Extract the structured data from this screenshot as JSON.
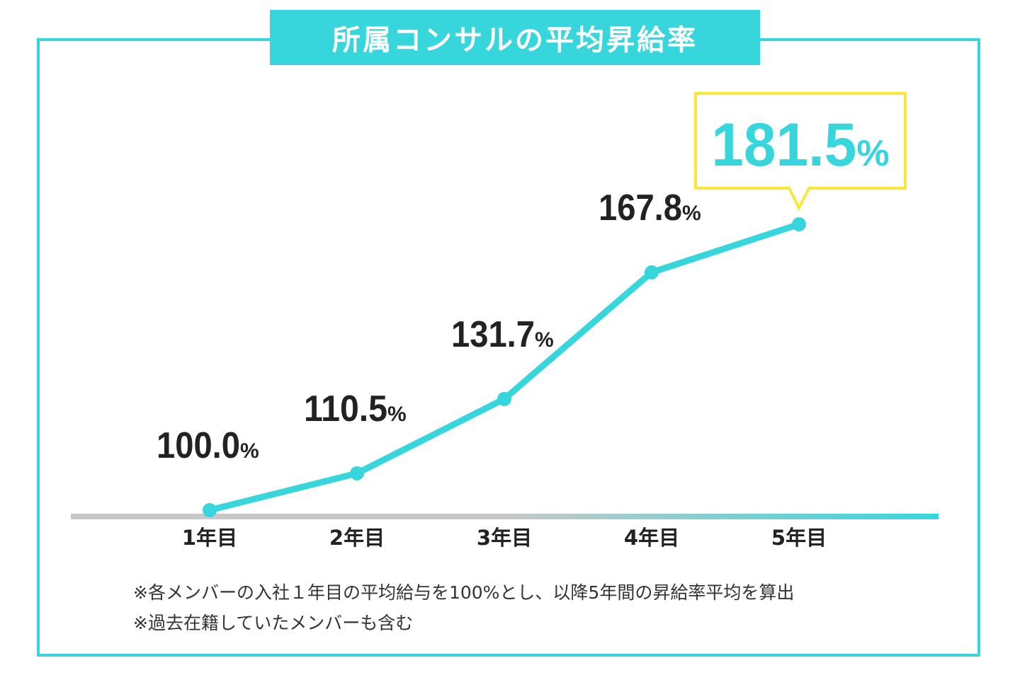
{
  "title": "所属コンサルの平均昇給率",
  "notes": [
    "※各メンバーの入社１年目の平均給与を100%とし、以降5年間の昇給率平均を算出",
    "※過去在籍していたメンバーも含む"
  ],
  "colors": {
    "accent": "#36d6dc",
    "callout_border": "#f7e83a",
    "axis_gray": "#c8c8c8",
    "text_dark": "#222222"
  },
  "chart_data": {
    "type": "line",
    "title": "所属コンサルの平均昇給率",
    "categories": [
      "1年目",
      "2年目",
      "3年目",
      "4年目",
      "5年目"
    ],
    "values": [
      100.0,
      110.5,
      131.7,
      167.8,
      181.5
    ],
    "data_labels": [
      "100.0",
      "110.5",
      "131.7",
      "167.8",
      "181.5"
    ],
    "unit": "%",
    "highlight_index": 4,
    "xlabel": "",
    "ylabel": "",
    "ylim": [
      100,
      181.5
    ]
  }
}
